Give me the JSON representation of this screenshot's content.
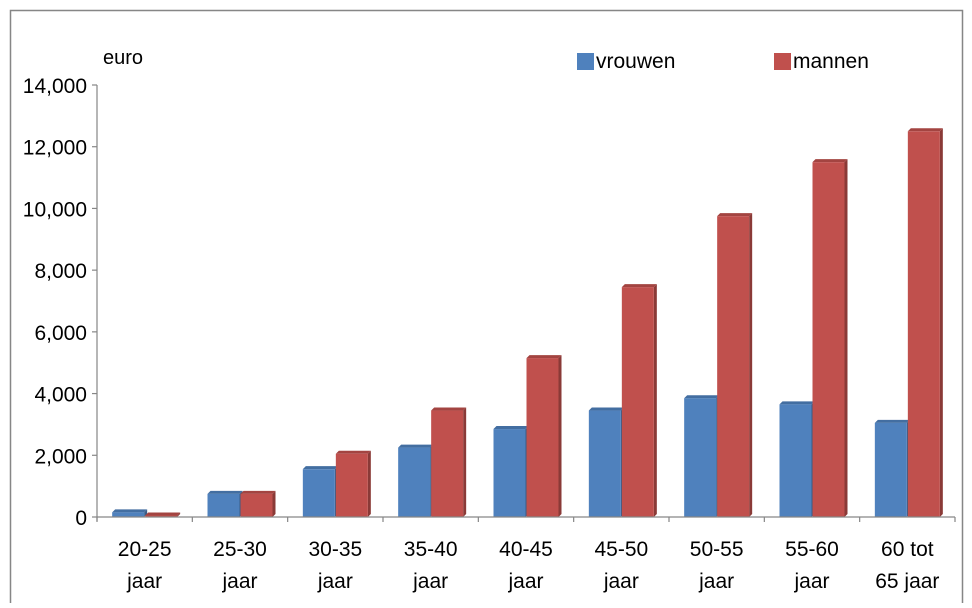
{
  "chart_data": {
    "type": "bar",
    "unit_label": "euro",
    "categories": [
      [
        "20-25",
        "jaar"
      ],
      [
        "25-30",
        "jaar"
      ],
      [
        "30-35",
        "jaar"
      ],
      [
        "35-40",
        "jaar"
      ],
      [
        "40-45",
        "jaar"
      ],
      [
        "45-50",
        "jaar"
      ],
      [
        "50-55",
        "jaar"
      ],
      [
        "55-60",
        "jaar"
      ],
      [
        "60 tot",
        "65 jaar"
      ]
    ],
    "series": [
      {
        "name": "vrouwen",
        "color": "#4F81BD",
        "values": [
          150,
          750,
          1550,
          2250,
          2850,
          3450,
          3850,
          3650,
          3050
        ]
      },
      {
        "name": "mannen",
        "color": "#C0504D",
        "values": [
          50,
          750,
          2050,
          3450,
          5150,
          7450,
          9750,
          11500,
          12500
        ]
      }
    ],
    "ylim": [
      0,
      14000
    ],
    "yticks": [
      "0",
      "2,000",
      "4,000",
      "6,000",
      "8,000",
      "10,000",
      "12,000",
      "14,000"
    ],
    "ytick_values": [
      0,
      2000,
      4000,
      6000,
      8000,
      10000,
      12000,
      14000
    ],
    "grid": false,
    "legend_position": "top-right"
  }
}
